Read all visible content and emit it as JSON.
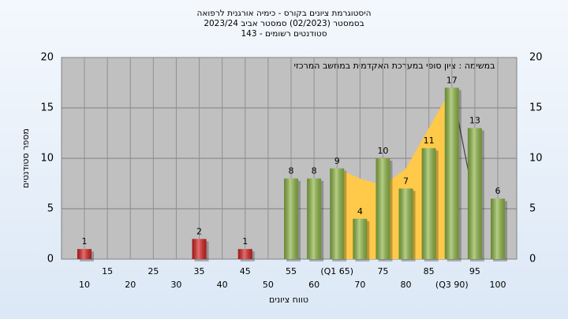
{
  "chart_data": {
    "type": "bar",
    "title": [
      "היסטוגרמת ציונים בקורס - כימיה אורגנית לרפואה",
      "בסמסטר (02/2023)  סמסטר אביב 2023/24",
      "סטודנטים רשומים - 143"
    ],
    "annotation": "במשימה : ציון סופי במערכת האקדמית במחשב המרכזי",
    "xlabel": "טווח ציונים",
    "ylabel": "מספר סטודנטים",
    "categories": [
      "10",
      "15",
      "20",
      "25",
      "30",
      "35",
      "40",
      "45",
      "50",
      "55",
      "60",
      "(Q1 65)",
      "70",
      "75",
      "80",
      "85",
      "(Q3 90)",
      "95",
      "100"
    ],
    "values": [
      1,
      null,
      null,
      null,
      null,
      2,
      null,
      1,
      null,
      8,
      8,
      9,
      4,
      10,
      7,
      11,
      17,
      13,
      6
    ],
    "colors": [
      "#d42020",
      null,
      null,
      null,
      null,
      "#d42020",
      null,
      "#d42020",
      null,
      "#8db545",
      "#8db545",
      "#8db545",
      "#8db545",
      "#8db545",
      "#8db545",
      "#8db545",
      "#8db545",
      "#8db545",
      "#8db545"
    ],
    "area": {
      "color": "#ffc94a",
      "values": [
        null,
        null,
        null,
        null,
        null,
        null,
        null,
        null,
        null,
        null,
        null,
        9,
        8,
        7.3,
        9,
        13,
        17,
        null,
        null
      ]
    },
    "line": {
      "color": "#404040",
      "values": [
        null,
        null,
        null,
        null,
        null,
        null,
        null,
        null,
        null,
        null,
        null,
        null,
        null,
        null,
        null,
        null,
        17,
        5.5,
        null
      ]
    },
    "ylim": [
      0,
      20
    ],
    "yticks": [
      0,
      5,
      10,
      15,
      20
    ],
    "grid": true
  }
}
